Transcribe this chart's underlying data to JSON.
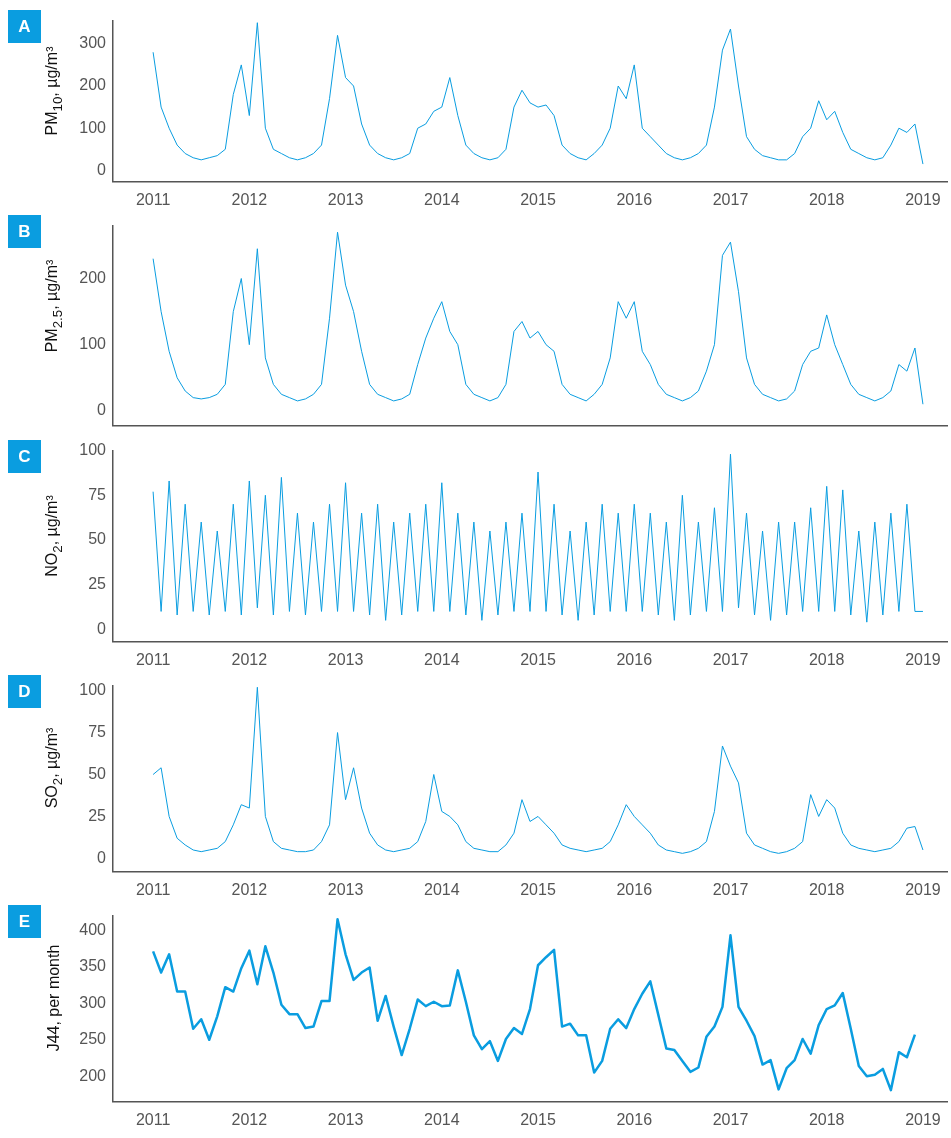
{
  "chart_data": [
    {
      "type": "line",
      "title": "A",
      "ylabel": "PM$_{10}$, µg/m³",
      "color": "#0a9de0",
      "grid": false,
      "legend": false,
      "marker": "none",
      "line_style": "solid",
      "x": [
        "2011-01",
        "2011-02",
        "2011-03",
        "2011-04",
        "2011-05",
        "2011-06",
        "2011-07",
        "2011-08",
        "2011-09",
        "2011-10",
        "2011-11",
        "2011-12",
        "2012-01",
        "2012-02",
        "2012-03",
        "2012-04",
        "2012-05",
        "2012-06",
        "2012-07",
        "2012-08",
        "2012-09",
        "2012-10",
        "2012-11",
        "2012-12",
        "2013-01",
        "2013-02",
        "2013-03",
        "2013-04",
        "2013-05",
        "2013-06",
        "2013-07",
        "2013-08",
        "2013-09",
        "2013-10",
        "2013-11",
        "2013-12",
        "2014-01",
        "2014-02",
        "2014-03",
        "2014-04",
        "2014-05",
        "2014-06",
        "2014-07",
        "2014-08",
        "2014-09",
        "2014-10",
        "2014-11",
        "2014-12",
        "2015-01",
        "2015-02",
        "2015-03",
        "2015-04",
        "2015-05",
        "2015-06",
        "2015-07",
        "2015-08",
        "2015-09",
        "2015-10",
        "2015-11",
        "2015-12",
        "2016-01",
        "2016-02",
        "2016-03",
        "2016-04",
        "2016-05",
        "2016-06",
        "2016-07",
        "2016-08",
        "2016-09",
        "2016-10",
        "2016-11",
        "2016-12",
        "2017-01",
        "2017-02",
        "2017-03",
        "2017-04",
        "2017-05",
        "2017-06",
        "2017-07",
        "2017-08",
        "2017-09",
        "2017-10",
        "2017-11",
        "2017-12",
        "2018-01",
        "2018-02",
        "2018-03",
        "2018-04",
        "2018-05",
        "2018-06",
        "2018-07",
        "2018-08",
        "2018-09",
        "2018-10",
        "2018-11",
        "2018-12",
        "2019-01"
      ],
      "values": [
        280,
        150,
        100,
        60,
        40,
        30,
        25,
        30,
        35,
        50,
        180,
        250,
        130,
        350,
        100,
        50,
        40,
        30,
        25,
        30,
        40,
        60,
        170,
        320,
        220,
        200,
        110,
        60,
        40,
        30,
        25,
        30,
        40,
        100,
        110,
        140,
        150,
        220,
        130,
        60,
        40,
        30,
        25,
        30,
        50,
        150,
        190,
        160,
        150,
        155,
        130,
        60,
        40,
        30,
        25,
        40,
        60,
        100,
        200,
        170,
        250,
        100,
        80,
        60,
        40,
        30,
        25,
        30,
        40,
        60,
        150,
        285,
        335,
        200,
        80,
        50,
        35,
        30,
        25,
        25,
        40,
        80,
        100,
        165,
        120,
        140,
        90,
        50,
        40,
        30,
        25,
        30,
        60,
        100,
        90,
        110,
        15
      ],
      "xlim": [
        "2010-08",
        "2019-04"
      ],
      "xticks": [
        "2011",
        "2012",
        "2013",
        "2014",
        "2015",
        "2016",
        "2017",
        "2018",
        "2019"
      ],
      "ylim": [
        -27,
        355
      ],
      "yticks": [
        0,
        100,
        200,
        300
      ]
    },
    {
      "type": "line",
      "title": "B",
      "ylabel": "PM$_{2.5}$, µg/m³",
      "color": "#0a9de0",
      "grid": false,
      "legend": false,
      "marker": "none",
      "line_style": "solid",
      "tick_labels": "y",
      "x": [
        "2011-01",
        "2011-02",
        "2011-03",
        "2011-04",
        "2011-05",
        "2011-06",
        "2011-07",
        "2011-08",
        "2011-09",
        "2011-10",
        "2011-11",
        "2011-12",
        "2012-01",
        "2012-02",
        "2012-03",
        "2012-04",
        "2012-05",
        "2012-06",
        "2012-07",
        "2012-08",
        "2012-09",
        "2012-10",
        "2012-11",
        "2012-12",
        "2013-01",
        "2013-02",
        "2013-03",
        "2013-04",
        "2013-05",
        "2013-06",
        "2013-07",
        "2013-08",
        "2013-09",
        "2013-10",
        "2013-11",
        "2013-12",
        "2014-01",
        "2014-02",
        "2014-03",
        "2014-04",
        "2014-05",
        "2014-06",
        "2014-07",
        "2014-08",
        "2014-09",
        "2014-10",
        "2014-11",
        "2014-12",
        "2015-01",
        "2015-02",
        "2015-03",
        "2015-04",
        "2015-05",
        "2015-06",
        "2015-07",
        "2015-08",
        "2015-09",
        "2015-10",
        "2015-11",
        "2015-12",
        "2016-01",
        "2016-02",
        "2016-03",
        "2016-04",
        "2016-05",
        "2016-06",
        "2016-07",
        "2016-08",
        "2016-09",
        "2016-10",
        "2016-11",
        "2016-12",
        "2017-01",
        "2017-02",
        "2017-03",
        "2017-04",
        "2017-05",
        "2017-06",
        "2017-07",
        "2017-08",
        "2017-09",
        "2017-10",
        "2017-11",
        "2017-12",
        "2018-01",
        "2018-02",
        "2018-03",
        "2018-04",
        "2018-05",
        "2018-06",
        "2018-07",
        "2018-08",
        "2018-09",
        "2018-10",
        "2018-11",
        "2018-12",
        "2019-01"
      ],
      "values": [
        230,
        150,
        90,
        50,
        30,
        20,
        18,
        20,
        25,
        40,
        150,
        200,
        100,
        245,
        80,
        40,
        25,
        20,
        15,
        18,
        25,
        40,
        140,
        270,
        190,
        150,
        90,
        40,
        25,
        20,
        15,
        18,
        25,
        70,
        110,
        140,
        165,
        120,
        100,
        40,
        25,
        20,
        15,
        20,
        40,
        120,
        135,
        110,
        120,
        100,
        90,
        40,
        25,
        20,
        15,
        25,
        40,
        80,
        165,
        140,
        165,
        90,
        70,
        40,
        25,
        20,
        15,
        20,
        30,
        60,
        100,
        235,
        255,
        180,
        80,
        40,
        25,
        20,
        15,
        18,
        30,
        70,
        90,
        95,
        145,
        100,
        70,
        40,
        25,
        20,
        15,
        20,
        30,
        70,
        60,
        95,
        10
      ],
      "xlim": [
        "2010-08",
        "2019-04"
      ],
      "xticks": [
        "2011",
        "2012",
        "2013",
        "2014",
        "2015",
        "2016",
        "2017",
        "2018",
        "2019"
      ],
      "ylim": [
        -22,
        280
      ],
      "yticks": [
        0,
        100,
        200
      ]
    },
    {
      "type": "line",
      "title": "C",
      "ylabel": "NO$_{2}$, µg/m³",
      "color": "#0a9de0",
      "grid": false,
      "legend": false,
      "marker": "none",
      "line_style": "solid",
      "x": [
        "2011-01",
        "2011-02",
        "2011-03",
        "2011-04",
        "2011-05",
        "2011-06",
        "2011-07",
        "2011-08",
        "2011-09",
        "2011-10",
        "2011-11",
        "2011-12",
        "2012-01",
        "2012-02",
        "2012-03",
        "2012-04",
        "2012-05",
        "2012-06",
        "2012-07",
        "2012-08",
        "2012-09",
        "2012-10",
        "2012-11",
        "2012-12",
        "2013-01",
        "2013-02",
        "2013-03",
        "2013-04",
        "2013-05",
        "2013-06",
        "2013-07",
        "2013-08",
        "2013-09",
        "2013-10",
        "2013-11",
        "2013-12",
        "2014-01",
        "2014-02",
        "2014-03",
        "2014-04",
        "2014-05",
        "2014-06",
        "2014-07",
        "2014-08",
        "2014-09",
        "2014-10",
        "2014-11",
        "2014-12",
        "2015-01",
        "2015-02",
        "2015-03",
        "2015-04",
        "2015-05",
        "2015-06",
        "2015-07",
        "2015-08",
        "2015-09",
        "2015-10",
        "2015-11",
        "2015-12",
        "2016-01",
        "2016-02",
        "2016-03",
        "2016-04",
        "2016-05",
        "2016-06",
        "2016-07",
        "2016-08",
        "2016-09",
        "2016-10",
        "2016-11",
        "2016-12",
        "2017-01",
        "2017-02",
        "2017-03",
        "2017-04",
        "2017-05",
        "2017-06",
        "2017-07",
        "2017-08",
        "2017-09",
        "2017-10",
        "2017-11",
        "2017-12",
        "2018-01",
        "2018-02",
        "2018-03",
        "2018-04",
        "2018-05",
        "2018-06",
        "2018-07",
        "2018-08",
        "2018-09",
        "2018-10",
        "2018-11",
        "2018-12",
        "2019-01"
      ],
      "values": [
        77,
        10,
        83,
        8,
        70,
        10,
        60,
        8,
        55,
        10,
        70,
        8,
        83,
        12,
        75,
        8,
        85,
        10,
        65,
        8,
        60,
        10,
        70,
        10,
        82,
        10,
        65,
        8,
        70,
        5,
        60,
        8,
        65,
        10,
        70,
        10,
        82,
        10,
        65,
        8,
        60,
        5,
        55,
        8,
        60,
        10,
        65,
        10,
        88,
        10,
        70,
        8,
        55,
        5,
        60,
        8,
        70,
        10,
        65,
        10,
        70,
        10,
        65,
        8,
        60,
        5,
        75,
        8,
        60,
        10,
        68,
        10,
        98,
        12,
        65,
        8,
        55,
        5,
        60,
        8,
        60,
        10,
        68,
        10,
        80,
        10,
        78,
        8,
        55,
        4,
        60,
        8,
        65,
        10,
        70,
        10,
        10
      ],
      "xlim": [
        "2010-08",
        "2019-04"
      ],
      "xticks": [
        "2011",
        "2012",
        "2013",
        "2014",
        "2015",
        "2016",
        "2017",
        "2018",
        "2019"
      ],
      "ylim": [
        -7,
        100
      ],
      "yticks": [
        0,
        25,
        50,
        75,
        100
      ]
    },
    {
      "type": "line",
      "title": "D",
      "ylabel": "SO$_{2}$, µg/m³",
      "color": "#0a9de0",
      "grid": false,
      "legend": false,
      "marker": "none",
      "line_style": "solid",
      "x": [
        "2011-01",
        "2011-02",
        "2011-03",
        "2011-04",
        "2011-05",
        "2011-06",
        "2011-07",
        "2011-08",
        "2011-09",
        "2011-10",
        "2011-11",
        "2011-12",
        "2012-01",
        "2012-02",
        "2012-03",
        "2012-04",
        "2012-05",
        "2012-06",
        "2012-07",
        "2012-08",
        "2012-09",
        "2012-10",
        "2012-11",
        "2012-12",
        "2013-01",
        "2013-02",
        "2013-03",
        "2013-04",
        "2013-05",
        "2013-06",
        "2013-07",
        "2013-08",
        "2013-09",
        "2013-10",
        "2013-11",
        "2013-12",
        "2014-01",
        "2014-02",
        "2014-03",
        "2014-04",
        "2014-05",
        "2014-06",
        "2014-07",
        "2014-08",
        "2014-09",
        "2014-10",
        "2014-11",
        "2014-12",
        "2015-01",
        "2015-02",
        "2015-03",
        "2015-04",
        "2015-05",
        "2015-06",
        "2015-07",
        "2015-08",
        "2015-09",
        "2015-10",
        "2015-11",
        "2015-12",
        "2016-01",
        "2016-02",
        "2016-03",
        "2016-04",
        "2016-05",
        "2016-06",
        "2016-07",
        "2016-08",
        "2016-09",
        "2016-10",
        "2016-11",
        "2016-12",
        "2017-01",
        "2017-02",
        "2017-03",
        "2017-04",
        "2017-05",
        "2017-06",
        "2017-07",
        "2017-08",
        "2017-09",
        "2017-10",
        "2017-11",
        "2017-12",
        "2018-01",
        "2018-02",
        "2018-03",
        "2018-04",
        "2018-05",
        "2018-06",
        "2018-07",
        "2018-08",
        "2018-09",
        "2018-10",
        "2018-11",
        "2018-12",
        "2019-01"
      ],
      "values": [
        50,
        54,
        25,
        12,
        8,
        5,
        4,
        5,
        6,
        10,
        20,
        32,
        30,
        102,
        25,
        10,
        6,
        5,
        4,
        4,
        5,
        10,
        20,
        75,
        35,
        54,
        30,
        15,
        8,
        5,
        4,
        5,
        6,
        10,
        22,
        50,
        28,
        25,
        20,
        10,
        6,
        5,
        4,
        4,
        8,
        15,
        35,
        22,
        25,
        20,
        15,
        8,
        6,
        5,
        4,
        5,
        6,
        10,
        20,
        32,
        25,
        20,
        15,
        8,
        5,
        4,
        3,
        4,
        6,
        10,
        28,
        67,
        55,
        45,
        15,
        8,
        6,
        4,
        3,
        4,
        6,
        10,
        38,
        25,
        35,
        30,
        15,
        8,
        6,
        5,
        4,
        5,
        6,
        10,
        18,
        19,
        5
      ],
      "xlim": [
        "2010-08",
        "2019-04"
      ],
      "xticks": [
        "2011",
        "2012",
        "2013",
        "2014",
        "2015",
        "2016",
        "2017",
        "2018",
        "2019"
      ],
      "ylim": [
        -8,
        103
      ],
      "yticks": [
        0,
        25,
        50,
        75,
        100
      ]
    },
    {
      "type": "line",
      "title": "E",
      "ylabel": "J44, per month",
      "color": "#0a9de0",
      "grid": false,
      "legend": false,
      "marker": "none",
      "line_style": "solid",
      "x": [
        "2011-01",
        "2011-02",
        "2011-03",
        "2011-04",
        "2011-05",
        "2011-06",
        "2011-07",
        "2011-08",
        "2011-09",
        "2011-10",
        "2011-11",
        "2011-12",
        "2012-01",
        "2012-02",
        "2012-03",
        "2012-04",
        "2012-05",
        "2012-06",
        "2012-07",
        "2012-08",
        "2012-09",
        "2012-10",
        "2012-11",
        "2012-12",
        "2013-01",
        "2013-02",
        "2013-03",
        "2013-04",
        "2013-05",
        "2013-06",
        "2013-07",
        "2013-08",
        "2013-09",
        "2013-10",
        "2013-11",
        "2013-12",
        "2014-01",
        "2014-02",
        "2014-03",
        "2014-04",
        "2014-05",
        "2014-06",
        "2014-07",
        "2014-08",
        "2014-09",
        "2014-10",
        "2014-11",
        "2014-12",
        "2015-01",
        "2015-02",
        "2015-03",
        "2015-04",
        "2015-05",
        "2015-06",
        "2015-07",
        "2015-08",
        "2015-09",
        "2015-10",
        "2015-11",
        "2015-12",
        "2016-01",
        "2016-02",
        "2016-03",
        "2016-04",
        "2016-05",
        "2016-06",
        "2016-07",
        "2016-08",
        "2016-09",
        "2016-10",
        "2016-11",
        "2016-12",
        "2017-01",
        "2017-02",
        "2017-03",
        "2017-04",
        "2017-05",
        "2017-06",
        "2017-07",
        "2017-08",
        "2017-09",
        "2017-10",
        "2017-11",
        "2017-12",
        "2018-01",
        "2018-02",
        "2018-03",
        "2018-04",
        "2018-05",
        "2018-06",
        "2018-07",
        "2018-08",
        "2018-09",
        "2018-10",
        "2018-11",
        "2018-12"
      ],
      "values": [
        371,
        342,
        367,
        316,
        316,
        265,
        278,
        250,
        282,
        322,
        316,
        348,
        372,
        326,
        378,
        342,
        298,
        285,
        285,
        266,
        268,
        303,
        303,
        415,
        367,
        332,
        342,
        349,
        276,
        310,
        268,
        229,
        265,
        305,
        296,
        302,
        296,
        297,
        345,
        302,
        256,
        237,
        248,
        221,
        251,
        266,
        258,
        292,
        352,
        363,
        373,
        268,
        272,
        256,
        256,
        205,
        221,
        265,
        278,
        266,
        292,
        313,
        330,
        284,
        238,
        236,
        221,
        206,
        212,
        254,
        268,
        295,
        393,
        295,
        276,
        255,
        216,
        222,
        182,
        211,
        222,
        251,
        231,
        270,
        292,
        297,
        314,
        265,
        214,
        200,
        202,
        210,
        181,
        233,
        226,
        257
      ],
      "xlim": [
        "2010-08",
        "2019-04"
      ],
      "xticks": [
        "2011",
        "2012",
        "2013",
        "2014",
        "2015",
        "2016",
        "2017",
        "2018",
        "2019"
      ],
      "ylim": [
        165,
        420
      ],
      "yticks": [
        200,
        250,
        300,
        350,
        400
      ]
    }
  ]
}
